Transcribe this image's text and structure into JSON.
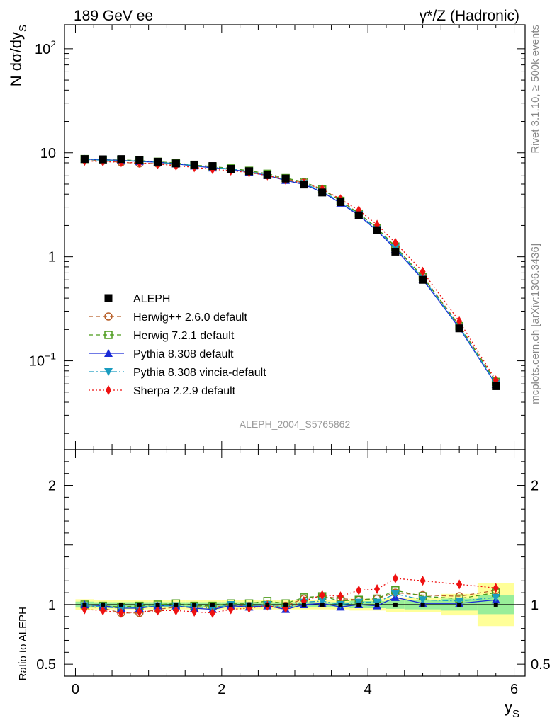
{
  "header": {
    "left_label": "189 GeV ee",
    "right_label": "γ*/Z (Hadronic)"
  },
  "side_labels": {
    "rivet": "Rivet 3.1.10, ≥ 500k events",
    "mcplots": "mcplots.cern.ch [arXiv:1306.3436]"
  },
  "watermark": "ALEPH_2004_S5765862",
  "chart_data": {
    "type": "scatter",
    "title": "γ*/Z (Hadronic)",
    "main_panel": {
      "ylabel": "N dσ/dy_S",
      "yscale": "log",
      "ylim": [
        0.014,
        170
      ],
      "ytick_labels": [
        "10^-1",
        "1",
        "10",
        "10^2"
      ],
      "ytick_values": [
        0.1,
        1,
        10,
        100
      ]
    },
    "ratio_panel": {
      "ylabel": "Ratio to ALEPH",
      "ylim": [
        0.4,
        2.3
      ],
      "ytick_labels": [
        "0.5",
        "1",
        "2"
      ],
      "ytick_values": [
        0.5,
        1,
        2
      ]
    },
    "xlabel": "y_S",
    "xlim": [
      -0.15,
      6.15
    ],
    "xtick_labels": [
      "0",
      "2",
      "4",
      "6"
    ],
    "xtick_values": [
      0,
      2,
      4,
      6
    ],
    "x": [
      0.125,
      0.375,
      0.625,
      0.875,
      1.125,
      1.375,
      1.625,
      1.875,
      2.125,
      2.375,
      2.625,
      2.875,
      3.125,
      3.375,
      3.625,
      3.875,
      4.125,
      4.375,
      4.75,
      5.25,
      5.75
    ],
    "x_bin_edges": [
      0,
      0.25,
      0.5,
      0.75,
      1.0,
      1.25,
      1.5,
      1.75,
      2.0,
      2.25,
      2.5,
      2.75,
      3.0,
      3.25,
      3.5,
      3.75,
      4.0,
      4.25,
      4.5,
      5.0,
      5.5,
      6.0
    ],
    "band_stat": [
      0.025,
      0.02,
      0.02,
      0.02,
      0.02,
      0.02,
      0.02,
      0.02,
      0.02,
      0.02,
      0.02,
      0.02,
      0.02,
      0.02,
      0.02,
      0.03,
      0.03,
      0.035,
      0.04,
      0.05,
      0.08
    ],
    "band_total": [
      0.045,
      0.04,
      0.04,
      0.04,
      0.04,
      0.04,
      0.04,
      0.04,
      0.04,
      0.04,
      0.04,
      0.04,
      0.04,
      0.04,
      0.04,
      0.05,
      0.05,
      0.06,
      0.06,
      0.09,
      0.18
    ],
    "series": [
      {
        "name": "ALEPH",
        "color": "#000000",
        "marker": "square",
        "line": "none",
        "values": [
          8.7,
          8.65,
          8.7,
          8.5,
          8.2,
          7.9,
          7.7,
          7.45,
          7.0,
          6.65,
          6.1,
          5.65,
          4.95,
          4.15,
          3.35,
          2.5,
          1.8,
          1.12,
          0.6,
          0.205,
          0.057
        ]
      },
      {
        "name": "Herwig++ 2.6.0 default",
        "color": "#b8602a",
        "marker": "open-circle",
        "line": "dashed",
        "ratio": [
          0.99,
          0.97,
          0.93,
          0.93,
          0.96,
          0.98,
          0.98,
          0.98,
          0.99,
          0.99,
          1.0,
          0.99,
          1.05,
          1.07,
          1.05,
          1.04,
          1.05,
          1.1,
          1.08,
          1.07,
          1.12
        ]
      },
      {
        "name": "Herwig 7.2.1 default",
        "color": "#4a9a1a",
        "marker": "open-square",
        "line": "dashed",
        "ratio": [
          1.0,
          0.99,
          0.98,
          0.99,
          1.0,
          1.01,
          0.99,
          0.99,
          1.01,
          1.01,
          1.03,
          1.01,
          1.06,
          1.07,
          1.03,
          1.04,
          1.05,
          1.12,
          1.07,
          1.05,
          1.1
        ]
      },
      {
        "name": "Pythia 8.308 default",
        "color": "#1a2bd6",
        "marker": "triangle-up",
        "line": "solid",
        "ratio": [
          1.0,
          0.99,
          0.97,
          0.97,
          0.99,
          0.99,
          0.97,
          0.96,
          0.99,
          0.98,
          0.99,
          0.96,
          1.0,
          1.01,
          0.98,
          1.0,
          0.99,
          1.06,
          1.01,
          1.01,
          1.04
        ]
      },
      {
        "name": "Pythia 8.308 vincia-default",
        "color": "#1a9cc0",
        "marker": "triangle-down",
        "line": "dashdot",
        "ratio": [
          0.99,
          0.98,
          0.97,
          0.98,
          0.99,
          0.99,
          0.98,
          0.97,
          1.0,
          0.99,
          1.0,
          0.97,
          1.02,
          1.03,
          1.0,
          1.02,
          1.02,
          1.09,
          1.04,
          1.03,
          1.06
        ]
      },
      {
        "name": "Sherpa 2.2.9 default",
        "color": "#ee1111",
        "marker": "diamond",
        "line": "dotted",
        "ratio": [
          0.96,
          0.95,
          0.93,
          0.94,
          0.95,
          0.95,
          0.94,
          0.93,
          0.96,
          0.97,
          0.99,
          0.97,
          1.03,
          1.08,
          1.07,
          1.12,
          1.13,
          1.22,
          1.2,
          1.17,
          1.14
        ]
      }
    ]
  }
}
